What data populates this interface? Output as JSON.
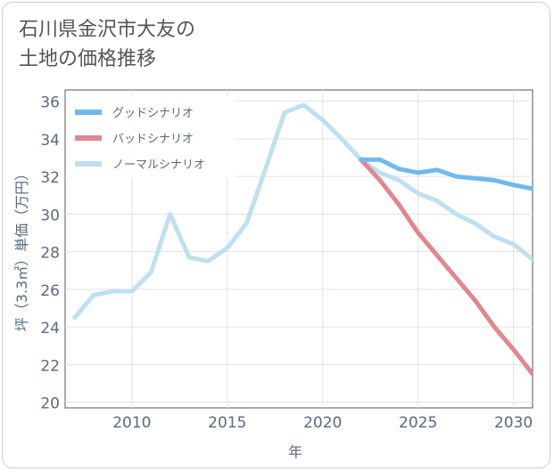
{
  "title_lines": [
    "石川県金沢市大友の",
    "土地の価格推移"
  ],
  "colors": {
    "good": "#71b9ec",
    "bad": "#e0878f",
    "normal": "#bfe0ef",
    "axis_text": "#5a6a7e",
    "grid": "#dde3ea"
  },
  "chart_data": {
    "type": "line",
    "title": "石川県金沢市大友の土地の価格推移",
    "xlabel": "年",
    "ylabel": "坪（3.3㎡）単価（万円）",
    "xlim": [
      2006.5,
      2031
    ],
    "ylim": [
      19.7,
      36.6
    ],
    "xticks": [
      2010,
      2015,
      2020,
      2025,
      2030
    ],
    "yticks": [
      20,
      22,
      24,
      26,
      28,
      30,
      32,
      34,
      36
    ],
    "grid": true,
    "legend_position": "top-left",
    "series": [
      {
        "name": "グッドシナリオ",
        "color": "#71b9ec",
        "x": [
          2022,
          2023,
          2024,
          2025,
          2026,
          2027,
          2028,
          2029,
          2030,
          2031
        ],
        "y": [
          32.9,
          32.9,
          32.4,
          32.2,
          32.35,
          32.0,
          31.9,
          31.8,
          31.55,
          31.35
        ]
      },
      {
        "name": "バッドシナリオ",
        "color": "#e0878f",
        "x": [
          2022,
          2023,
          2024,
          2025,
          2026,
          2027,
          2028,
          2029,
          2030,
          2031
        ],
        "y": [
          32.9,
          31.8,
          30.5,
          29.0,
          27.8,
          26.6,
          25.4,
          24.0,
          22.8,
          21.5
        ]
      },
      {
        "name": "ノーマルシナリオ",
        "color": "#bfe0ef",
        "x": [
          2007,
          2008,
          2009,
          2010,
          2011,
          2012,
          2013,
          2014,
          2015,
          2016,
          2017,
          2018,
          2019,
          2020,
          2021,
          2022,
          2023,
          2024,
          2025,
          2026,
          2027,
          2028,
          2029,
          2030,
          2031
        ],
        "y": [
          24.5,
          25.7,
          25.9,
          25.9,
          26.9,
          30.0,
          27.7,
          27.5,
          28.2,
          29.5,
          32.4,
          35.4,
          35.8,
          35.0,
          34.0,
          32.9,
          32.2,
          31.8,
          31.1,
          30.7,
          30.0,
          29.5,
          28.8,
          28.4,
          27.6
        ]
      }
    ]
  }
}
